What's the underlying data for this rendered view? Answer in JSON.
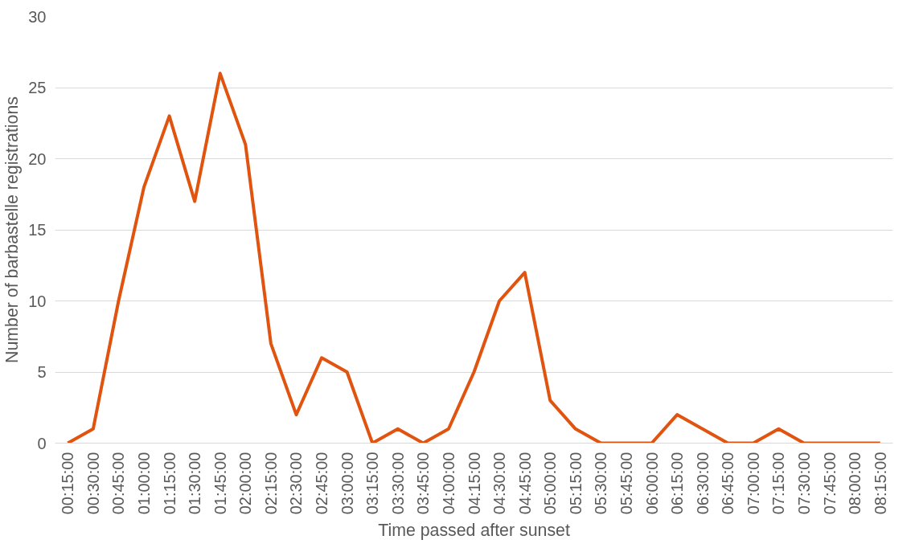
{
  "chart_data": {
    "type": "line",
    "xlabel": "Time passed after sunset",
    "ylabel": "Number of barbastelle registrations",
    "categories": [
      "00:15:00",
      "00:30:00",
      "00:45:00",
      "01:00:00",
      "01:15:00",
      "01:30:00",
      "01:45:00",
      "02:00:00",
      "02:15:00",
      "02:30:00",
      "02:45:00",
      "03:00:00",
      "03:15:00",
      "03:30:00",
      "03:45:00",
      "04:00:00",
      "04:15:00",
      "04:30:00",
      "04:45:00",
      "05:00:00",
      "05:15:00",
      "05:30:00",
      "05:45:00",
      "06:00:00",
      "06:15:00",
      "06:30:00",
      "06:45:00",
      "07:00:00",
      "07:15:00",
      "07:30:00",
      "07:45:00",
      "08:00:00",
      "08:15:00"
    ],
    "series": [
      {
        "color": "#e0540f",
        "values": [
          0,
          1,
          10,
          18,
          23,
          17,
          26,
          21,
          7,
          2,
          6,
          5,
          0,
          1,
          0,
          1,
          5,
          10,
          12,
          3,
          1,
          0,
          0,
          0,
          2,
          1,
          0,
          0,
          1,
          0,
          0,
          0,
          0
        ]
      }
    ],
    "ylim": [
      0,
      30
    ],
    "yticks": [
      0,
      5,
      10,
      15,
      20,
      25,
      30
    ],
    "grid": "y",
    "marker": "none",
    "line_style": "solid"
  }
}
